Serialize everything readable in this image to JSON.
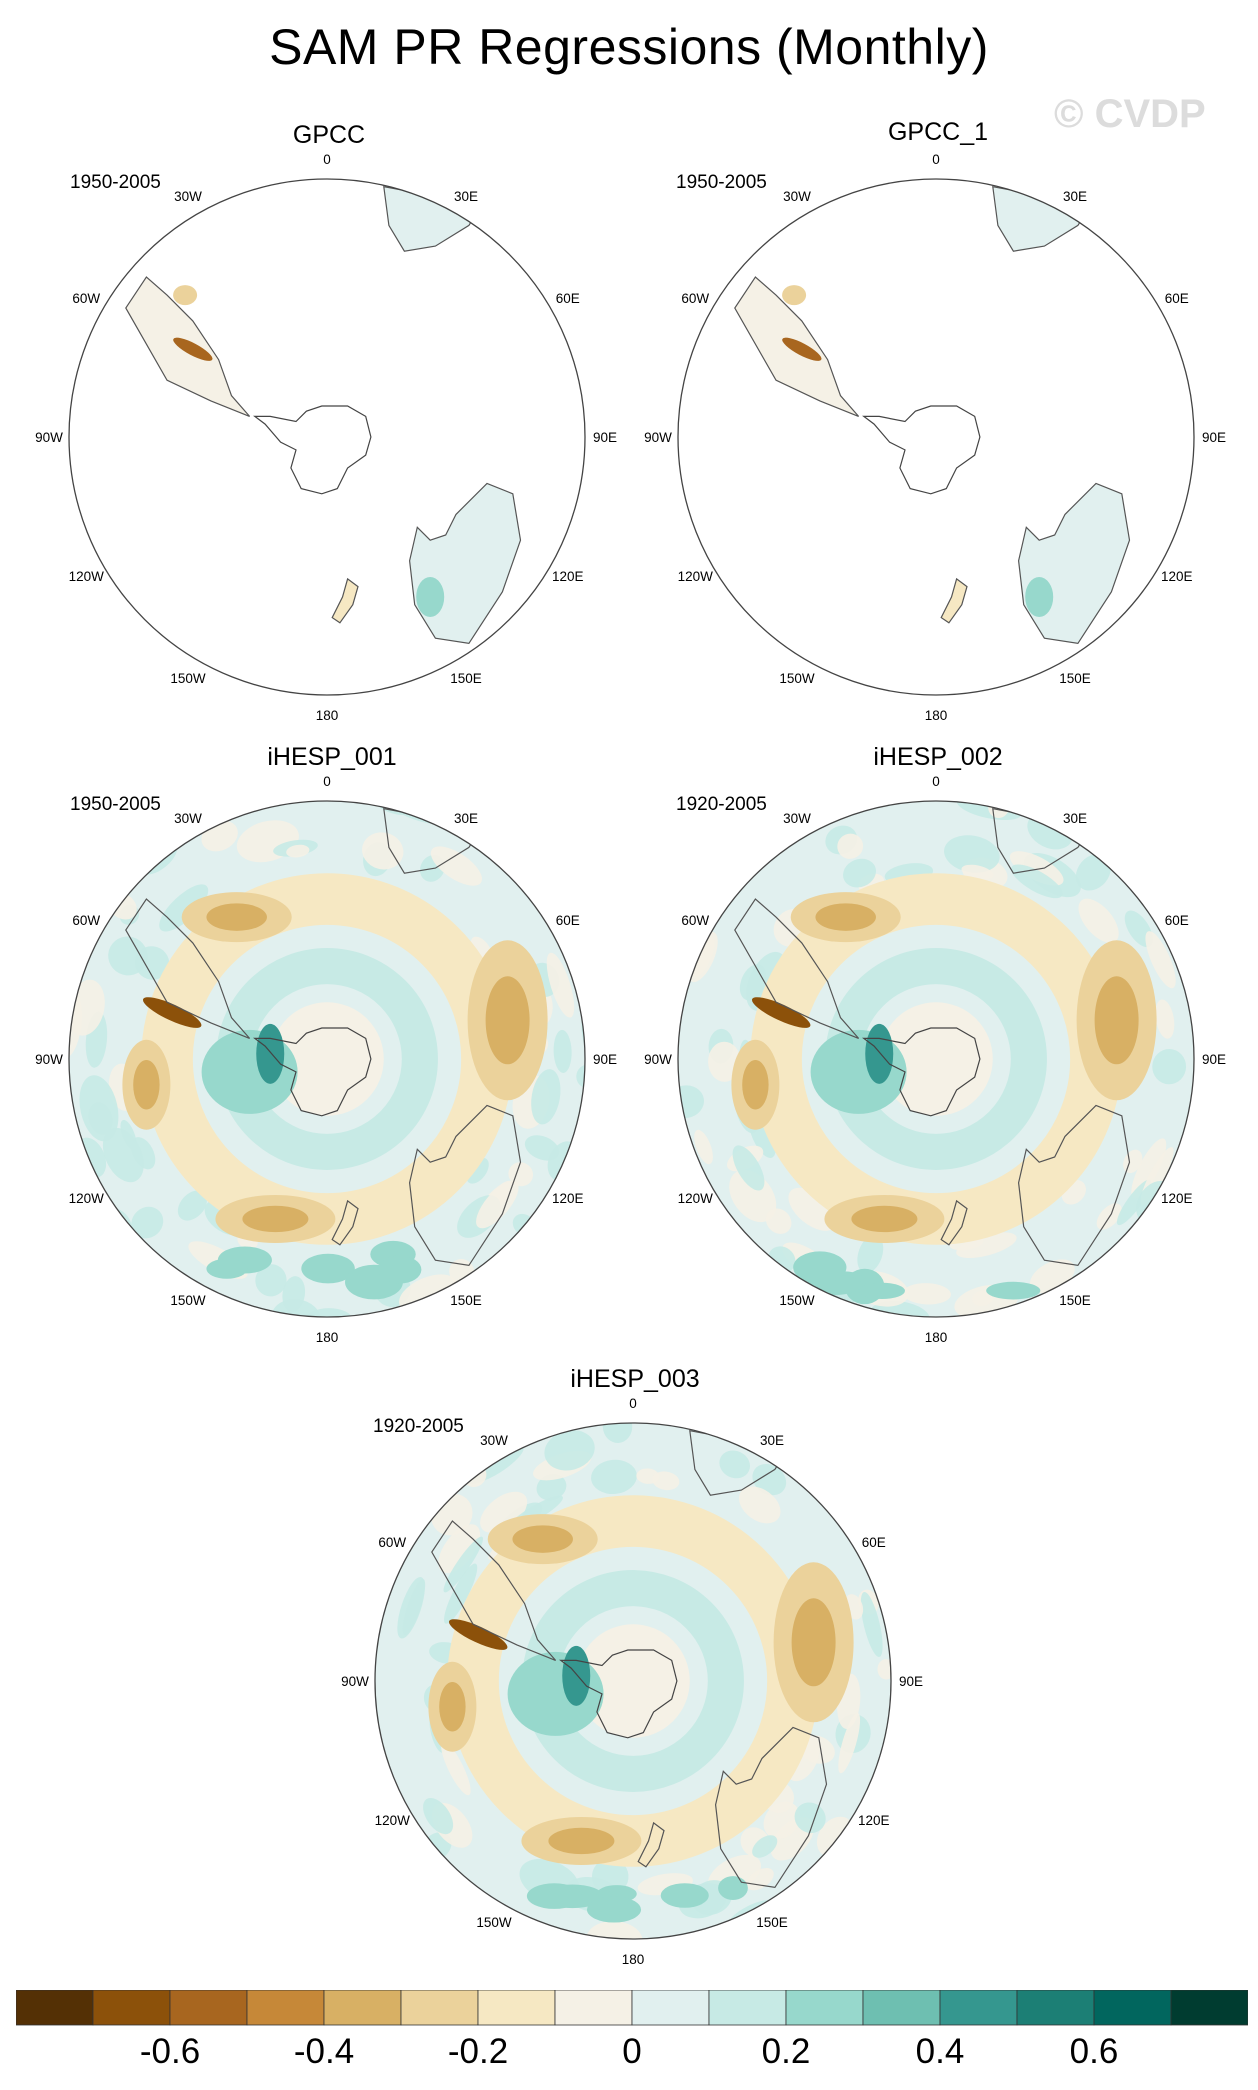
{
  "title": "SAM PR Regressions (Monthly)",
  "watermark": "© CVDP",
  "lon_labels": [
    "0",
    "30E",
    "60E",
    "90E",
    "120E",
    "150E",
    "180",
    "150W",
    "120W",
    "90W",
    "60W",
    "30W"
  ],
  "panels": [
    {
      "name": "GPCC",
      "period": "1950-2005",
      "field": "observations"
    },
    {
      "name": "GPCC_1",
      "period": "1950-2005",
      "field": "observations"
    },
    {
      "name": "iHESP_001",
      "period": "1950-2005",
      "field": "model"
    },
    {
      "name": "iHESP_002",
      "period": "1920-2005",
      "field": "model"
    },
    {
      "name": "iHESP_003",
      "period": "1920-2005",
      "field": "model"
    }
  ],
  "colorbar": {
    "colors": [
      "#543005",
      "#8c510a",
      "#a8661f",
      "#c68838",
      "#d8b064",
      "#ebd29b",
      "#f6e8c3",
      "#f5f1e6",
      "#e1f0ef",
      "#c7eae5",
      "#97d8cc",
      "#6ebfb1",
      "#35978f",
      "#1c7f75",
      "#01665e",
      "#003c30"
    ],
    "tick_labels": [
      "-0.6",
      "-0.4",
      "-0.2",
      "0",
      "0.2",
      "0.4",
      "0.6"
    ]
  }
}
